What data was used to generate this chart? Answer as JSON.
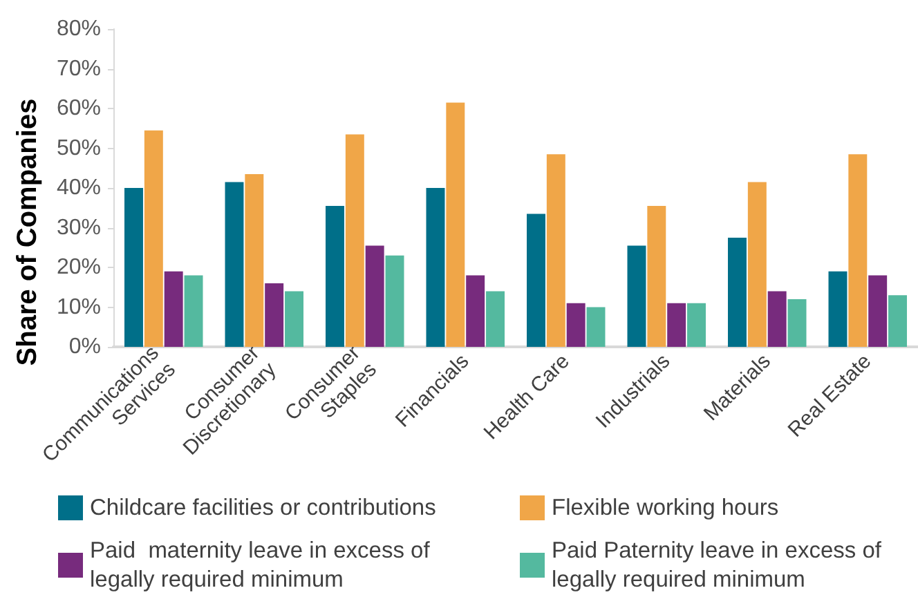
{
  "chart_data": {
    "type": "bar",
    "ylabel": "Share of Companies",
    "categories": [
      "Communications\nServices",
      "Consumer\nDiscretionary",
      "Consumer\nStaples",
      "Financials",
      "Health Care",
      "Industrials",
      "Materials",
      "Real Estate"
    ],
    "series": [
      {
        "name": "Childcare facilities or contributions",
        "color": "#006f89",
        "values": [
          40,
          41.5,
          35.5,
          40,
          33.5,
          25.5,
          27.5,
          19
        ]
      },
      {
        "name": "Flexible working hours",
        "color": "#f0a648",
        "values": [
          54.5,
          43.5,
          53.5,
          61.5,
          48.5,
          35.5,
          41.5,
          48.5
        ]
      },
      {
        "name": "Paid  maternity leave in excess of legally required minimum",
        "color": "#772b7d",
        "values": [
          19,
          16,
          25.5,
          18,
          11,
          11,
          14,
          18
        ]
      },
      {
        "name": "Paid Paternity leave in excess of legally required minimum",
        "color": "#54b99f",
        "values": [
          18,
          14,
          23,
          14,
          10,
          11,
          12,
          13
        ]
      }
    ],
    "ylim": [
      0,
      80
    ],
    "yticks": [
      {
        "value": 0,
        "label": "0%"
      },
      {
        "value": 10,
        "label": "10%"
      },
      {
        "value": 20,
        "label": "20%"
      },
      {
        "value": 30,
        "label": "30%"
      },
      {
        "value": 40,
        "label": "40%"
      },
      {
        "value": 50,
        "label": "50%"
      },
      {
        "value": 60,
        "label": "60%"
      },
      {
        "value": 70,
        "label": "70%"
      },
      {
        "value": 80,
        "label": "80%"
      }
    ],
    "legend": "bottom"
  }
}
